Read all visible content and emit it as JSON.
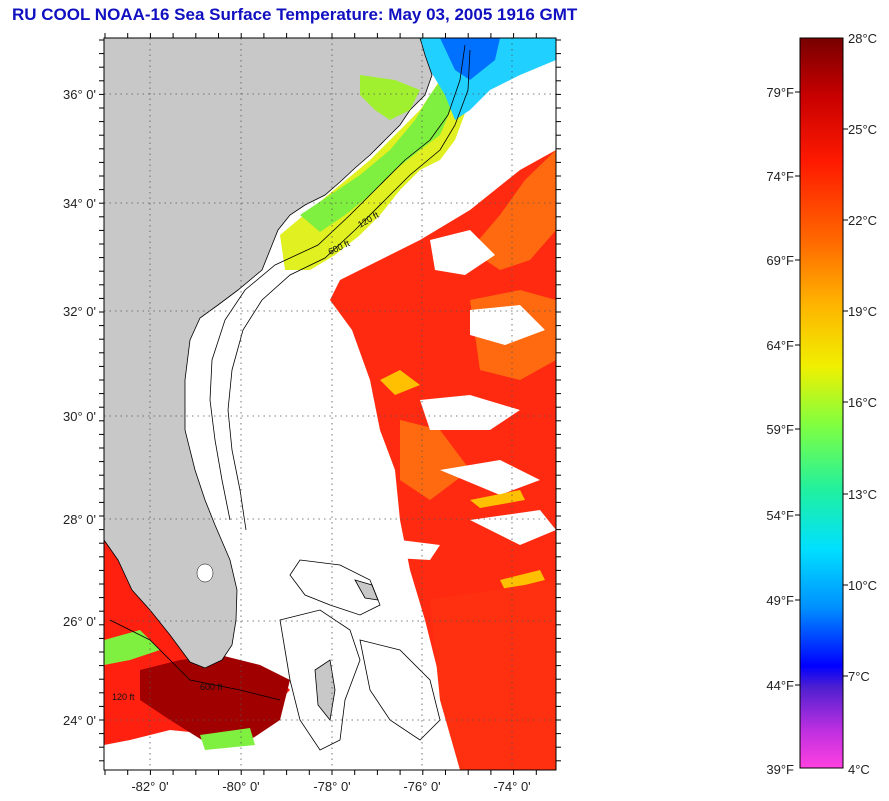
{
  "title": "RU COOL  NOAA-16  Sea Surface Temperature:  May 03, 2005 1916 GMT",
  "map": {
    "lat_labels": [
      "36° 0'",
      "34° 0'",
      "32° 0'",
      "30° 0'",
      "28° 0'",
      "26° 0'",
      "24° 0'"
    ],
    "lon_labels": [
      "-82° 0'",
      "-80° 0'",
      "-78° 0'",
      "-76° 0'",
      "-74° 0'"
    ],
    "contour_labels": [
      "120 ft",
      "600 ft"
    ],
    "colors": {
      "land": "#c8c8c8",
      "cloud": "#ffffff",
      "frame": "#000000"
    }
  },
  "colorbar": {
    "celsius_labels": [
      "28°C",
      "25°C",
      "22°C",
      "19°C",
      "16°C",
      "13°C",
      "10°C",
      "7°C",
      "4°C"
    ],
    "fahrenheit_labels": [
      "79°F",
      "74°F",
      "69°F",
      "64°F",
      "59°F",
      "54°F",
      "49°F",
      "44°F",
      "39°F"
    ],
    "range_celsius": [
      4,
      28
    ]
  }
}
